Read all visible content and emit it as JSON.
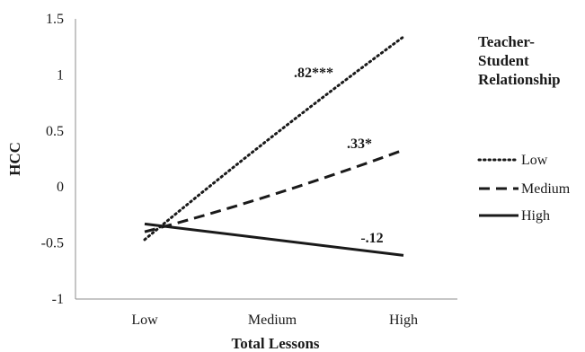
{
  "chart_data": {
    "type": "line",
    "title": "",
    "xlabel": "Total Lessons",
    "ylabel": "HCC",
    "categories": [
      "Low",
      "Medium",
      "High"
    ],
    "ylim": [
      -1,
      1.5
    ],
    "yticks": [
      "1.5",
      "1",
      "0.5",
      "0",
      "-0.5",
      "-1"
    ],
    "grid": false,
    "legend": {
      "title": "Teacher-\nStudent\nRelationship",
      "placement": "right"
    },
    "series": [
      {
        "name": "Low",
        "values": [
          -0.47,
          0.45,
          1.34
        ],
        "style": "dotted",
        "annotation": ".82***"
      },
      {
        "name": "Medium",
        "values": [
          -0.4,
          -0.07,
          0.33
        ],
        "style": "dashed",
        "annotation": ".33*"
      },
      {
        "name": "High",
        "values": [
          -0.33,
          -0.47,
          -0.61
        ],
        "style": "solid",
        "annotation": "-.12"
      }
    ],
    "colors": {
      "line": "#1a1a1a",
      "axis": "#8c8c8c"
    }
  }
}
